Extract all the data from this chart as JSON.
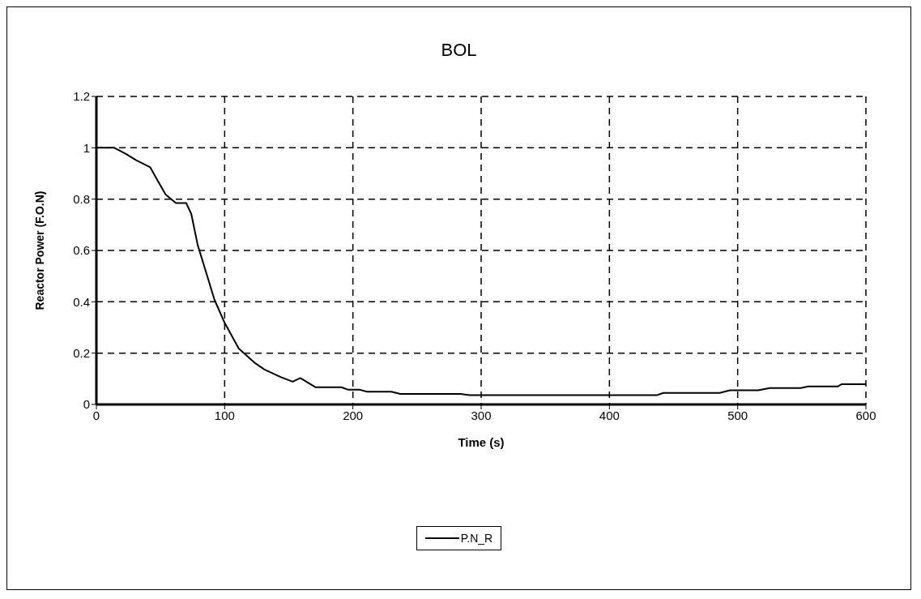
{
  "chart_data": {
    "type": "line",
    "title": "BOL",
    "xlabel": "Time (s)",
    "ylabel": "Reactor Power (F.O.N)",
    "xlim": [
      0,
      600
    ],
    "xticks": [
      0,
      100,
      200,
      300,
      400,
      500,
      600
    ],
    "ylim": [
      0,
      1.2
    ],
    "yticks": [
      0,
      0.2,
      0.4,
      0.6,
      0.8,
      1,
      1.2
    ],
    "grid": true,
    "legend": "bottom",
    "marker": "none",
    "line_style": "solid",
    "series": [
      {
        "name": "P.N_R",
        "color": "#000000",
        "x": [
          0,
          14,
          23,
          31,
          42,
          48,
          54,
          62,
          70,
          74,
          79,
          87,
          92,
          100,
          111,
          123,
          131,
          144,
          153,
          159,
          171,
          191,
          196,
          205,
          211,
          230,
          237,
          284,
          291,
          437,
          442,
          486,
          494,
          516,
          525,
          549,
          555,
          578,
          581,
          600
        ],
        "values": [
          1.0,
          1.0,
          0.976,
          0.952,
          0.924,
          0.87,
          0.818,
          0.785,
          0.785,
          0.742,
          0.621,
          0.491,
          0.409,
          0.318,
          0.218,
          0.164,
          0.136,
          0.106,
          0.089,
          0.103,
          0.067,
          0.067,
          0.058,
          0.058,
          0.05,
          0.05,
          0.041,
          0.041,
          0.036,
          0.036,
          0.045,
          0.045,
          0.055,
          0.055,
          0.064,
          0.064,
          0.07,
          0.07,
          0.079,
          0.079
        ]
      }
    ]
  }
}
